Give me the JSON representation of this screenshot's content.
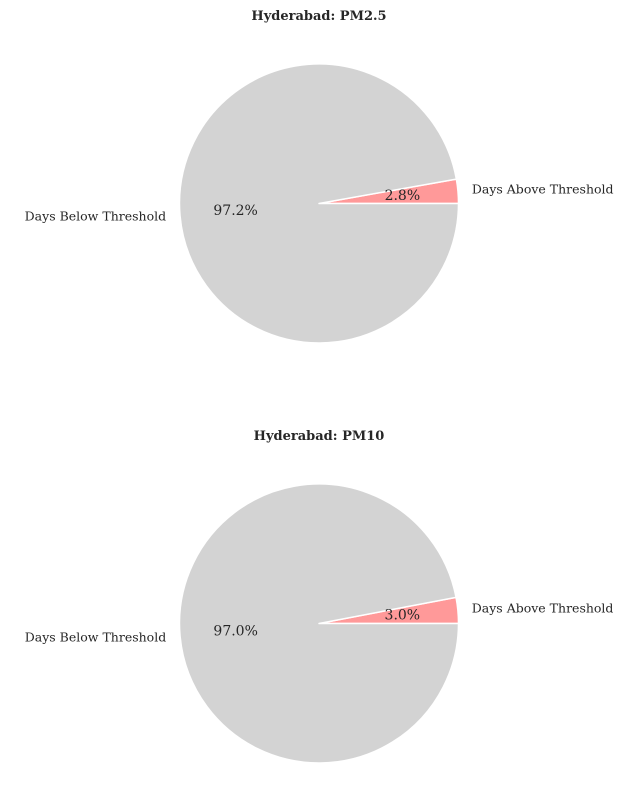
{
  "colors": {
    "above_threshold": "#ff9999",
    "below_threshold": "#d3d3d3",
    "edge": "#ffffff",
    "text": "#262626"
  },
  "chart_data": [
    {
      "type": "pie",
      "title": "Hyderabad: PM2.5",
      "start_angle_deg": 0,
      "direction": "counterclockwise",
      "slices": [
        {
          "label": "Days Above Threshold",
          "value": 2.8,
          "pct_label": "2.8%",
          "color": "#ff9999"
        },
        {
          "label": "Days Below Threshold",
          "value": 97.2,
          "pct_label": "97.2%",
          "color": "#d3d3d3"
        }
      ]
    },
    {
      "type": "pie",
      "title": "Hyderabad: PM10",
      "start_angle_deg": 0,
      "direction": "counterclockwise",
      "slices": [
        {
          "label": "Days Above Threshold",
          "value": 3.0,
          "pct_label": "3.0%",
          "color": "#ff9999"
        },
        {
          "label": "Days Below Threshold",
          "value": 97.0,
          "pct_label": "97.0%",
          "color": "#d3d3d3"
        }
      ]
    }
  ]
}
